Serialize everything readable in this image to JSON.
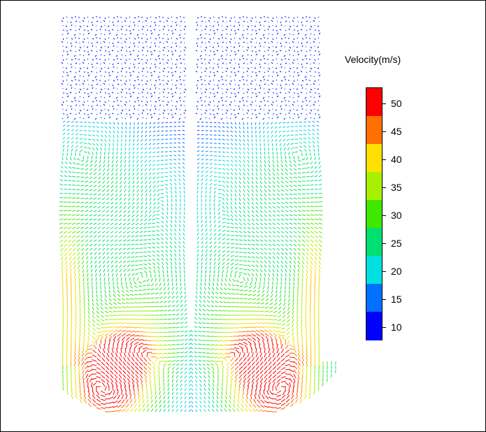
{
  "figure": {
    "colorbar": {
      "title": "Velocity(m/s)",
      "tick_labels": [
        "50",
        "45",
        "40",
        "35",
        "30",
        "25",
        "20",
        "15",
        "10"
      ],
      "colors": [
        "#ff0000",
        "#ff7000",
        "#ffe000",
        "#a8f000",
        "#40e800",
        "#00e070",
        "#00e0e0",
        "#0070ff",
        "#0000ff"
      ]
    },
    "field": {
      "description_colors": {
        "low": "#0000ff",
        "mid": "#00e0e0",
        "high": "#ff0000"
      }
    }
  }
}
